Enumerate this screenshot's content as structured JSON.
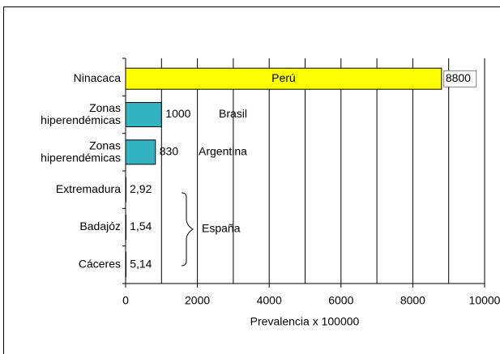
{
  "chart_data": {
    "type": "hbar",
    "categories": [
      "Ninacaca",
      "Zonas\nhiperendémicas",
      "Zonas\nhiperendémicas",
      "Extremadura",
      "Badajóz",
      "Cáceres"
    ],
    "values": [
      8800,
      1000,
      830,
      2.92,
      1.54,
      5.14
    ],
    "value_labels": [
      "8800",
      "1000",
      "830",
      "2,92",
      "1,54",
      "5,14"
    ],
    "colors": [
      "#ffff00",
      "#33b3c1",
      "#33b3c1",
      "#33b3c1",
      "#33b3c1",
      "#33b3c1"
    ],
    "xlim": [
      0,
      10000
    ],
    "xticks": [
      0,
      2000,
      4000,
      6000,
      8000,
      10000
    ],
    "xminor": [
      1000,
      3000,
      5000,
      7000,
      9000
    ],
    "grid": true,
    "xlabel": "Prevalencia x 100000",
    "annotations": [
      "Perú",
      "Brasil",
      "Argentina",
      "España"
    ]
  }
}
